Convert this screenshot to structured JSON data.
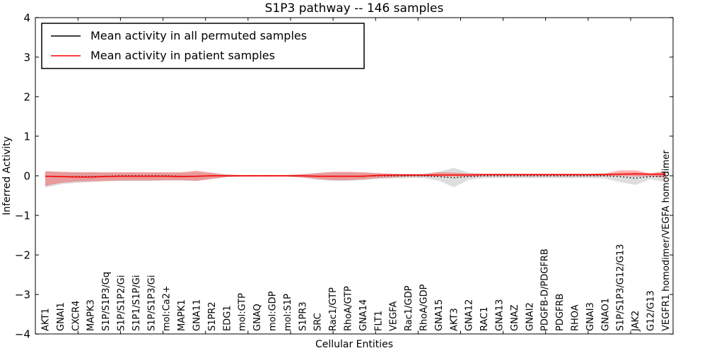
{
  "chart_data": {
    "type": "line",
    "title": "S1P3 pathway -- 146 samples",
    "xlabel": "Cellular Entities",
    "ylabel": "Inferred Activity",
    "ylim": [
      -4,
      4
    ],
    "yticks": [
      4,
      3,
      2,
      1,
      0,
      -1,
      -2,
      -3,
      -4
    ],
    "grid": false,
    "legend_position": "upper-left",
    "background_color": "#ffffff",
    "categories": [
      "AKT1",
      "GNAI1",
      "CXCR4",
      "MAPK3",
      "S1P/S1P3/Gq",
      "S1P/S1P2/Gi",
      "S1P1/S1P/Gi",
      "S1P/S1P3/Gi",
      "mol:Ca2+",
      "MAPK1",
      "GNA11",
      "S1PR2",
      "EDG1",
      "mol:GTP",
      "GNAQ",
      "mol:GDP",
      "mol:S1P",
      "S1PR3",
      "SRC",
      "Rac1/GTP",
      "RhoA/GTP",
      "GNA14",
      "FLT1",
      "VEGFA",
      "Rac1/GDP",
      "RhoA/GDP",
      "GNA15",
      "AKT3",
      "GNA12",
      "RAC1",
      "GNA13",
      "GNAZ",
      "GNAI2",
      "PDGFB-D/PDGFRB",
      "PDGFRB",
      "RHOA",
      "GNAI3",
      "GNAO1",
      "S1P/S1P3/G12/G13",
      "JAK2",
      "G12/G13",
      "VEGFR1 homodimer/VEGFA homodimer"
    ],
    "series": [
      {
        "name": "Mean activity in all permuted samples",
        "color": "#000000",
        "style": "dotted",
        "values": [
          -0.01,
          -0.02,
          -0.02,
          -0.02,
          -0.01,
          0,
          0,
          0,
          0,
          -0.01,
          -0.01,
          0,
          0,
          0,
          0,
          0,
          0,
          0,
          -0.01,
          -0.01,
          -0.01,
          -0.01,
          0,
          0,
          0,
          0,
          -0.02,
          -0.05,
          -0.02,
          0,
          0,
          0,
          0,
          0,
          0,
          0,
          0,
          0,
          -0.02,
          -0.06,
          -0.02,
          -0.01
        ]
      },
      {
        "name": "Mean activity in patient samples",
        "color": "#ff0000",
        "style": "solid",
        "values": [
          -0.01,
          -0.02,
          -0.03,
          -0.03,
          -0.02,
          -0.01,
          -0.01,
          -0.01,
          -0.01,
          -0.02,
          -0.01,
          0,
          0,
          0,
          0,
          0,
          0,
          0,
          -0.01,
          -0.01,
          -0.01,
          -0.01,
          0.01,
          0.02,
          0.02,
          0.02,
          0.02,
          0.02,
          0.02,
          0.03,
          0.03,
          0.03,
          0.03,
          0.03,
          0.03,
          0.03,
          0.03,
          0.03,
          0.04,
          0.05,
          0.04,
          0.04
        ]
      }
    ],
    "bands": [
      {
        "name": "permuted-std-band",
        "color": "#000000",
        "opacity": 0.13,
        "upper": [
          0.12,
          0.1,
          0.09,
          0.09,
          0.08,
          0.08,
          0.08,
          0.08,
          0.08,
          0.08,
          0.1,
          0.06,
          0.03,
          0.02,
          0.02,
          0.02,
          0.02,
          0.04,
          0.07,
          0.09,
          0.09,
          0.08,
          0.06,
          0.05,
          0.05,
          0.05,
          0.1,
          0.2,
          0.08,
          0.05,
          0.05,
          0.05,
          0.05,
          0.05,
          0.05,
          0.05,
          0.05,
          0.06,
          0.08,
          0.08,
          0.06,
          0.1
        ],
        "lower": [
          -0.3,
          -0.22,
          -0.18,
          -0.16,
          -0.14,
          -0.13,
          -0.13,
          -0.13,
          -0.12,
          -0.12,
          -0.13,
          -0.08,
          -0.03,
          -0.02,
          -0.02,
          -0.02,
          -0.02,
          -0.05,
          -0.1,
          -0.13,
          -0.13,
          -0.11,
          -0.08,
          -0.07,
          -0.06,
          -0.06,
          -0.12,
          -0.29,
          -0.1,
          -0.06,
          -0.06,
          -0.06,
          -0.06,
          -0.06,
          -0.06,
          -0.06,
          -0.06,
          -0.07,
          -0.16,
          -0.23,
          -0.09,
          -0.16
        ]
      },
      {
        "name": "patient-std-band",
        "color": "#ff0000",
        "opacity": 0.3,
        "upper": [
          0.11,
          0.1,
          0.09,
          0.09,
          0.09,
          0.09,
          0.09,
          0.09,
          0.09,
          0.09,
          0.13,
          0.08,
          0.03,
          0.02,
          0.02,
          0.02,
          0.02,
          0.04,
          0.07,
          0.1,
          0.1,
          0.09,
          0.07,
          0.05,
          0.04,
          0.04,
          0.09,
          0.08,
          0.06,
          0.05,
          0.05,
          0.05,
          0.05,
          0.05,
          0.05,
          0.05,
          0.05,
          0.06,
          0.14,
          0.14,
          0.06,
          0.12
        ],
        "lower": [
          -0.26,
          -0.18,
          -0.15,
          -0.14,
          -0.13,
          -0.12,
          -0.12,
          -0.12,
          -0.11,
          -0.11,
          -0.13,
          -0.08,
          -0.03,
          -0.02,
          -0.02,
          -0.02,
          -0.02,
          -0.04,
          -0.08,
          -0.11,
          -0.11,
          -0.09,
          -0.06,
          -0.04,
          -0.02,
          -0.02,
          -0.02,
          -0.02,
          -0.02,
          -0.01,
          -0.01,
          -0.01,
          -0.01,
          -0.01,
          -0.01,
          -0.01,
          -0.01,
          -0.01,
          0.0,
          -0.02,
          -0.01,
          -0.05
        ]
      }
    ],
    "legend": [
      {
        "label": "Mean activity in all permuted samples",
        "color": "#000000"
      },
      {
        "label": "Mean activity in patient samples",
        "color": "#ff0000"
      }
    ]
  }
}
